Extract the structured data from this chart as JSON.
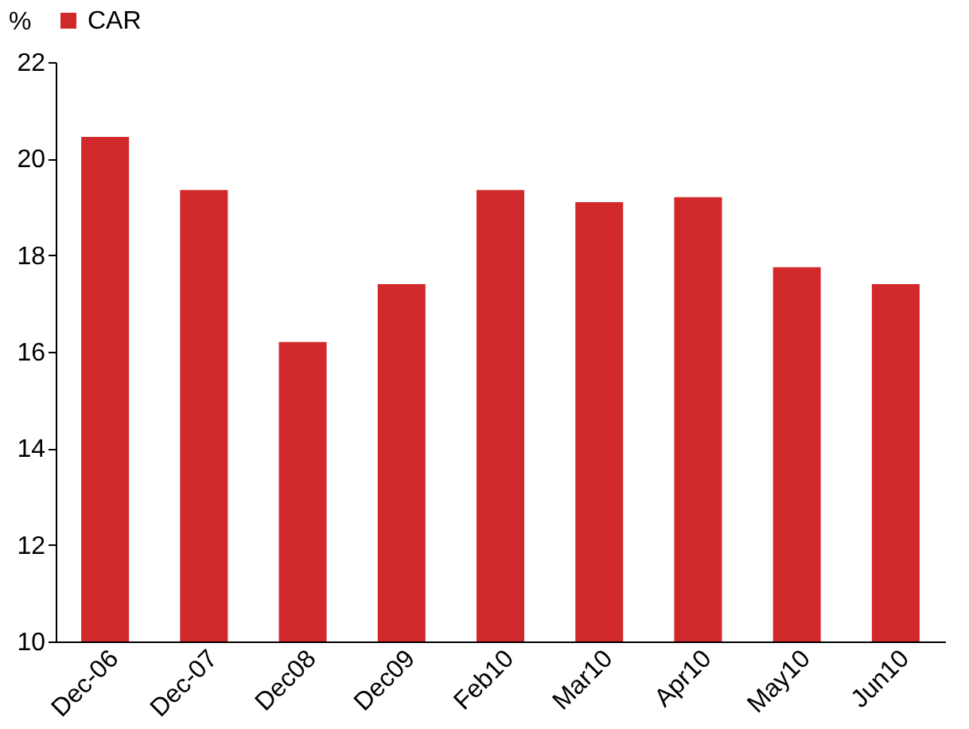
{
  "chart_data": {
    "type": "bar",
    "ylabel": "%",
    "categories": [
      "Dec-06",
      "Dec-07",
      "Dec08",
      "Dec09",
      "Feb10",
      "Mar10",
      "Apr10",
      "May10",
      "Jun10"
    ],
    "series": [
      {
        "name": "CAR",
        "color": "#d0282b",
        "values": [
          20.45,
          19.35,
          16.2,
          17.4,
          19.35,
          19.1,
          19.2,
          17.75,
          17.4
        ]
      }
    ],
    "ylim": [
      10,
      22
    ],
    "yticks": [
      10,
      12,
      14,
      16,
      18,
      20,
      22
    ],
    "grid": false,
    "legend": "top"
  }
}
